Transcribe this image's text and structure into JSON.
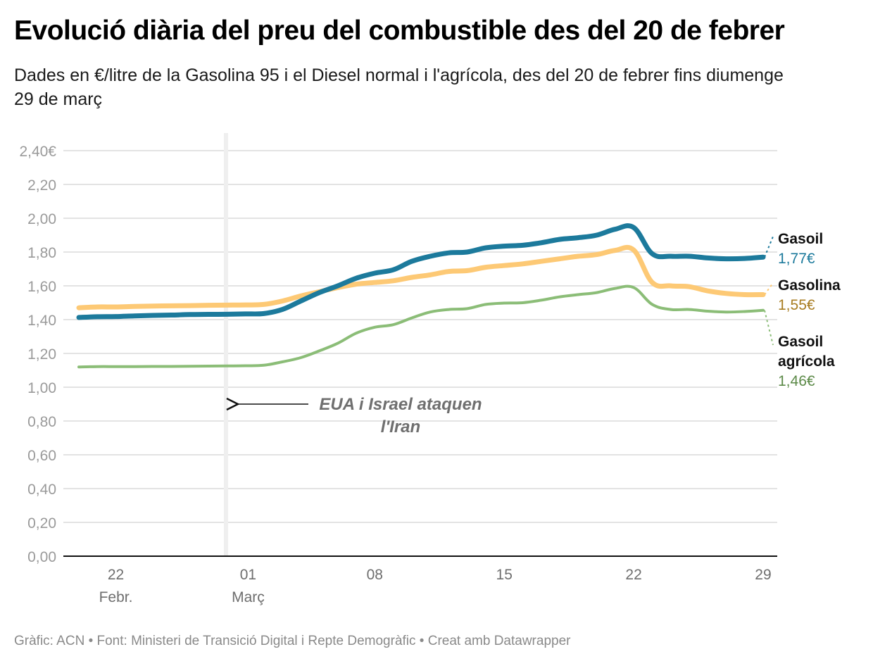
{
  "header": {
    "title": "Evolució diària del preu del combustible des del 20 de febrer",
    "subtitle": "Dades en €/litre de la Gasolina 95 i el Diesel normal i l'agrícola, des del 20 de febrer fins diumenge 29 de març"
  },
  "footer": {
    "text": "Gràfic: ACN • Font: Ministeri de Transició Digital i Repte Demogràfic • Creat amb Datawrapper"
  },
  "chart_data": {
    "type": "line",
    "title": "Evolució diària del preu del combustible des del 20 de febrer",
    "xlabel": "",
    "ylabel": "€/litre",
    "ylim": [
      0,
      2.4
    ],
    "yticks": [
      0,
      0.2,
      0.4,
      0.6,
      0.8,
      1.0,
      1.2,
      1.4,
      1.6,
      1.8,
      2.0,
      2.2,
      2.4
    ],
    "ytick_labels": [
      "0,00",
      "0,20",
      "0,40",
      "0,60",
      "0,80",
      "1,00",
      "1,20",
      "1,40",
      "1,60",
      "1,80",
      "2,00",
      "2,20",
      "2,40€"
    ],
    "grid": true,
    "x_start": "20 Feb",
    "x_end": "29 Mar",
    "xticks": [
      {
        "day_index": 2,
        "label": "22",
        "sublabel": "Febr."
      },
      {
        "day_index": 9,
        "label": "01",
        "sublabel": "Març"
      },
      {
        "day_index": 16,
        "label": "08",
        "sublabel": ""
      },
      {
        "day_index": 23,
        "label": "15",
        "sublabel": ""
      },
      {
        "day_index": 30,
        "label": "22",
        "sublabel": ""
      },
      {
        "day_index": 37,
        "label": "29",
        "sublabel": ""
      }
    ],
    "x": [
      "20 Feb",
      "21 Feb",
      "22 Feb",
      "23 Feb",
      "24 Feb",
      "25 Feb",
      "26 Feb",
      "27 Feb",
      "28 Feb",
      "1 Mar",
      "2 Mar",
      "3 Mar",
      "4 Mar",
      "5 Mar",
      "6 Mar",
      "7 Mar",
      "8 Mar",
      "9 Mar",
      "10 Mar",
      "11 Mar",
      "12 Mar",
      "13 Mar",
      "14 Mar",
      "15 Mar",
      "16 Mar",
      "17 Mar",
      "18 Mar",
      "19 Mar",
      "20 Mar",
      "21 Mar",
      "22 Mar",
      "23 Mar",
      "24 Mar",
      "25 Mar",
      "26 Mar",
      "27 Mar",
      "28 Mar",
      "29 Mar"
    ],
    "series": [
      {
        "name": "Gasolina",
        "label_value": "1,55€",
        "color": "#fdc975",
        "label_color": "#a87c21",
        "values": [
          1.47,
          1.475,
          1.475,
          1.478,
          1.48,
          1.482,
          1.483,
          1.485,
          1.486,
          1.487,
          1.49,
          1.51,
          1.54,
          1.565,
          1.59,
          1.61,
          1.62,
          1.63,
          1.65,
          1.665,
          1.685,
          1.69,
          1.71,
          1.72,
          1.73,
          1.745,
          1.76,
          1.775,
          1.785,
          1.81,
          1.812,
          1.62,
          1.6,
          1.595,
          1.57,
          1.555,
          1.548,
          1.548
        ]
      },
      {
        "name": "Gasoil",
        "label_value": "1,77€",
        "color": "#1c7a9c",
        "label_color": "#1c7a9c",
        "values": [
          1.413,
          1.417,
          1.418,
          1.422,
          1.425,
          1.427,
          1.43,
          1.431,
          1.432,
          1.434,
          1.436,
          1.46,
          1.51,
          1.56,
          1.6,
          1.645,
          1.675,
          1.695,
          1.745,
          1.775,
          1.795,
          1.8,
          1.825,
          1.835,
          1.84,
          1.855,
          1.875,
          1.885,
          1.9,
          1.935,
          1.945,
          1.79,
          1.775,
          1.775,
          1.765,
          1.76,
          1.762,
          1.77
        ]
      },
      {
        "name": "Gasoil agrícola",
        "label_value": "1,46€",
        "color": "#8bbd77",
        "label_color": "#5c8a48",
        "values": [
          1.12,
          1.122,
          1.122,
          1.122,
          1.123,
          1.123,
          1.124,
          1.125,
          1.126,
          1.127,
          1.13,
          1.15,
          1.175,
          1.215,
          1.26,
          1.32,
          1.355,
          1.37,
          1.41,
          1.445,
          1.46,
          1.465,
          1.49,
          1.498,
          1.5,
          1.515,
          1.535,
          1.548,
          1.56,
          1.585,
          1.59,
          1.49,
          1.46,
          1.46,
          1.45,
          1.445,
          1.448,
          1.455
        ]
      }
    ],
    "annotations": [
      {
        "text_line1": "EUA i Israel ataquen",
        "text_line2": "l'Iran",
        "points_to": "1 Mar",
        "arrow": "left"
      }
    ],
    "highlight_line": {
      "at": "1 Mar"
    }
  }
}
